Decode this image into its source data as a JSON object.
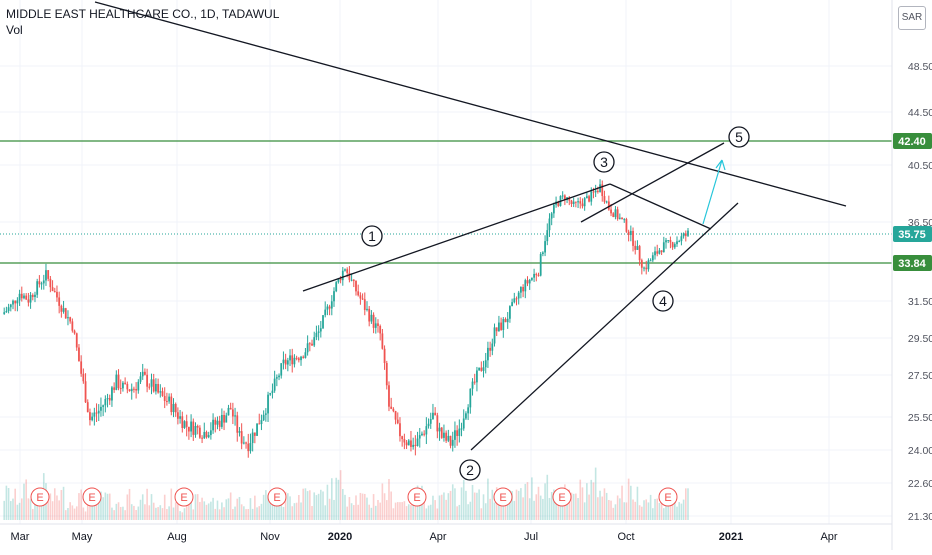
{
  "chart_data": {
    "type": "candlestick",
    "title": "MIDDLE EAST HEALTHCARE CO., 1D, TADAWUL",
    "subtitle": "Vol",
    "currency": "SAR",
    "x_ticks": [
      "Mar",
      "May",
      "Aug",
      "Nov",
      "2020",
      "Apr",
      "Jul",
      "Oct",
      "2021",
      "Apr"
    ],
    "y_ticks": [
      21.3,
      22.6,
      24.0,
      25.5,
      27.5,
      29.5,
      31.5,
      36.5,
      40.5,
      44.5,
      48.5
    ],
    "ylim": [
      21.0,
      52.5
    ],
    "price_labels": [
      {
        "value": 42.4,
        "label": "42.40",
        "color": "#388e3c"
      },
      {
        "value": 35.75,
        "label": "35.75",
        "color": "#26a69a"
      },
      {
        "value": 33.84,
        "label": "33.84",
        "color": "#388e3c"
      }
    ],
    "horizontal_lines": [
      {
        "value": 42.4,
        "color": "#388e3c",
        "style": "solid"
      },
      {
        "value": 33.84,
        "color": "#388e3c",
        "style": "solid"
      },
      {
        "value": 35.75,
        "color": "#26a69a",
        "style": "dotted"
      }
    ],
    "wave_labels": [
      "1",
      "2",
      "3",
      "4",
      "5"
    ],
    "event_markers": [
      "E",
      "E",
      "E",
      "E",
      "E",
      "E",
      "E",
      "E"
    ],
    "close_series": [
      30.8,
      31.2,
      32.0,
      31.6,
      32.4,
      33.1,
      32.0,
      31.0,
      30.2,
      27.6,
      25.4,
      25.8,
      26.4,
      27.2,
      26.8,
      26.9,
      27.4,
      27.0,
      26.5,
      26.2,
      25.6,
      25.1,
      25.0,
      24.8,
      25.1,
      25.4,
      25.9,
      24.6,
      24.3,
      25.1,
      26.0,
      27.0,
      28.1,
      28.4,
      28.6,
      29.1,
      29.8,
      31.0,
      32.5,
      33.6,
      32.4,
      31.4,
      30.5,
      29.7,
      26.0,
      24.9,
      24.4,
      24.2,
      24.9,
      25.6,
      24.6,
      24.3,
      25.0,
      26.3,
      27.4,
      28.4,
      29.8,
      30.3,
      31.1,
      32.2,
      32.8,
      33.4,
      36.2,
      37.8,
      38.3,
      37.6,
      37.9,
      38.3,
      39.0,
      37.5,
      36.9,
      36.2,
      35.0,
      33.5,
      34.2,
      34.9,
      35.1,
      35.4,
      35.75
    ],
    "volume_series": [
      0.5,
      0.7,
      0.6,
      0.8,
      0.5,
      0.9,
      0.6,
      0.7,
      0.5,
      0.6,
      0.4,
      0.5,
      0.6,
      0.5,
      0.4,
      0.7,
      0.5,
      0.6,
      0.4,
      0.5,
      0.6,
      0.4,
      0.5,
      0.6,
      0.5,
      0.4,
      0.6,
      0.5,
      0.4,
      0.5,
      0.7,
      0.6,
      0.5,
      0.6,
      0.7,
      0.8,
      0.6,
      0.7,
      0.9,
      1.0,
      0.7,
      0.6,
      0.5,
      0.6,
      0.8,
      0.6,
      0.5,
      0.6,
      0.7,
      0.6,
      0.5,
      0.6,
      0.7,
      0.8,
      0.7,
      0.6,
      0.8,
      0.7,
      0.6,
      0.7,
      0.8,
      0.9,
      1.0,
      0.8,
      0.7,
      0.6,
      0.8,
      0.9,
      1.0,
      0.7,
      0.6,
      0.7,
      0.8,
      0.7,
      0.6,
      0.5,
      0.6,
      0.5,
      0.6
    ]
  }
}
